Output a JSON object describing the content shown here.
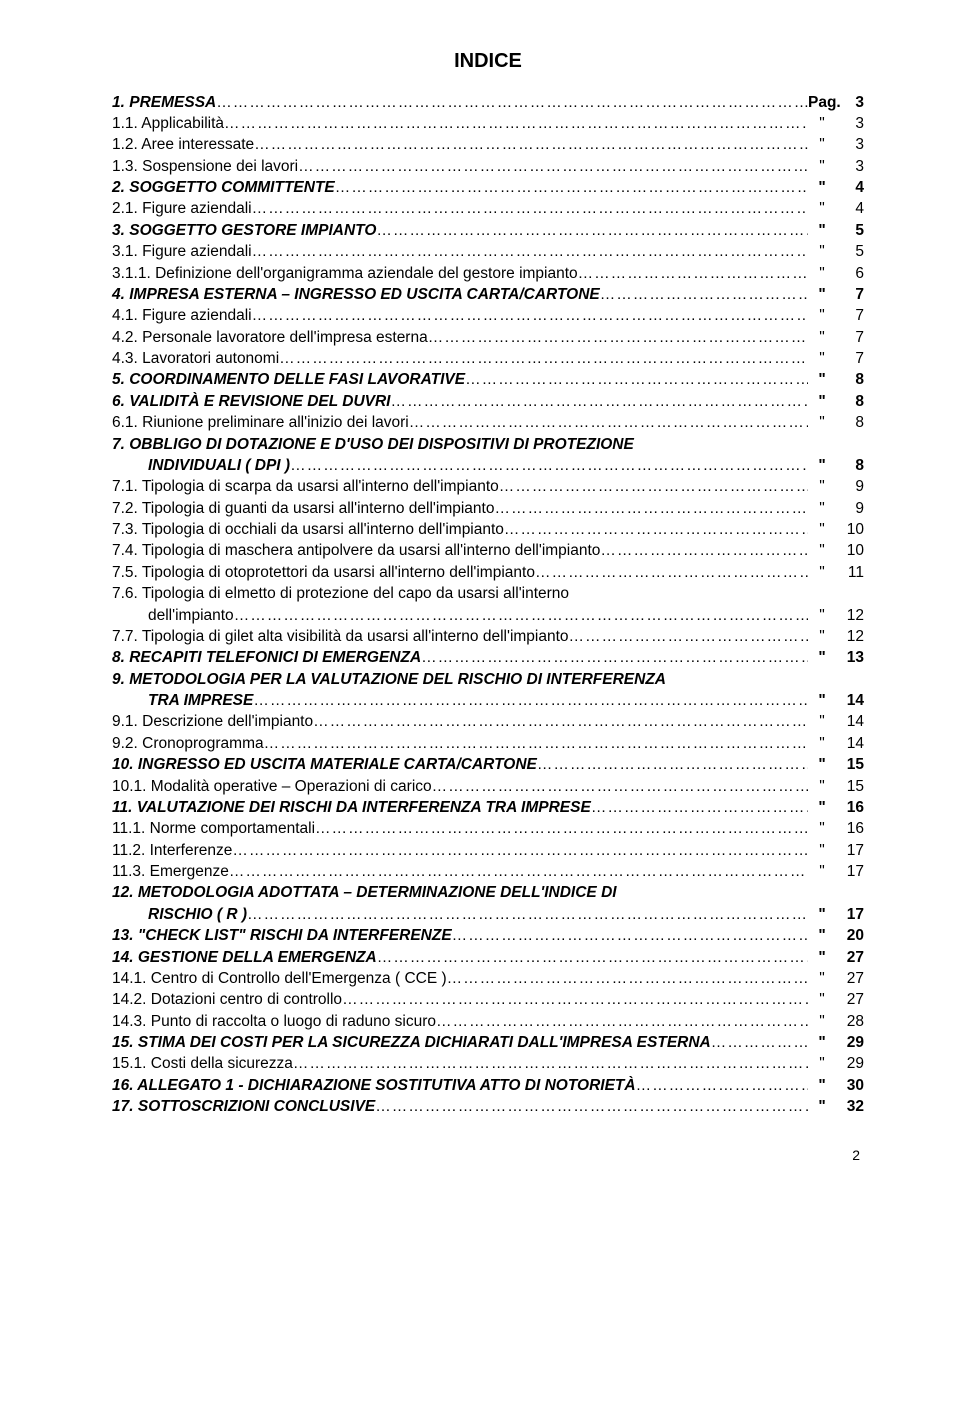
{
  "title": "INDICE",
  "pageNumber": "2",
  "dotFill": "…………………………………………………………………………………………………………………………………………………………………………………………………………………………",
  "rows": [
    {
      "label": "1.   PREMESSA",
      "style": "bi",
      "indent": 1,
      "quote": "Pag.",
      "page": "3"
    },
    {
      "label": "1.1.   Applicabilità",
      "style": "",
      "indent": 1,
      "quote": "\"",
      "page": "3"
    },
    {
      "label": "1.2.   Aree interessate",
      "style": "",
      "indent": 1,
      "quote": "\"",
      "page": "3"
    },
    {
      "label": "1.3.   Sospensione dei lavori",
      "style": "",
      "indent": 1,
      "quote": "\"",
      "page": "3"
    },
    {
      "label": "2.   SOGGETTO COMMITTENTE",
      "style": "bi",
      "indent": 1,
      "quote": "\"",
      "page": "4"
    },
    {
      "label": "2.1.   Figure aziendali",
      "style": "",
      "indent": 1,
      "quote": "\"",
      "page": "4"
    },
    {
      "label": "3.   SOGGETTO GESTORE IMPIANTO",
      "style": "bi",
      "indent": 1,
      "quote": "\"",
      "page": "5"
    },
    {
      "label": "3.1.   Figure aziendali",
      "style": "",
      "indent": 1,
      "quote": "\"",
      "page": "5"
    },
    {
      "label": "3.1.1. Definizione dell'organigramma aziendale del gestore impianto",
      "style": "",
      "indent": 1,
      "quote": "\"",
      "page": "6"
    },
    {
      "label": "4.   IMPRESA ESTERNA – INGRESSO ED USCITA CARTA/CARTONE",
      "style": "bi",
      "indent": 1,
      "quote": "\"",
      "page": "7"
    },
    {
      "label": "4.1.   Figure aziendali",
      "style": "",
      "indent": 1,
      "quote": "\"",
      "page": "7"
    },
    {
      "label": "4.2.   Personale lavoratore dell'impresa esterna",
      "style": "",
      "indent": 1,
      "quote": "\"",
      "page": "7"
    },
    {
      "label": "4.3.   Lavoratori autonomi",
      "style": "",
      "indent": 1,
      "quote": "\"",
      "page": "7"
    },
    {
      "label": "5.   COORDINAMENTO DELLE FASI LAVORATIVE",
      "style": "bi",
      "indent": 1,
      "quote": "\"",
      "page": "8"
    },
    {
      "label": "6.   VALIDITÀ E REVISIONE DEL DUVRI",
      "style": "bi",
      "indent": 1,
      "quote": "\"",
      "page": "8"
    },
    {
      "label": "6.1.   Riunione preliminare all'inizio dei lavori",
      "style": "",
      "indent": 1,
      "quote": "\"",
      "page": "8"
    },
    {
      "label": "7.   OBBLIGO DI DOTAZIONE E D'USO DEI DISPOSITIVI DI PROTEZIONE",
      "style": "bi",
      "indent": 1,
      "quote": "",
      "page": "",
      "nodots": true
    },
    {
      "label": "INDIVIDUALI ( DPI )",
      "style": "bi",
      "indent": 2,
      "quote": "\"",
      "page": "8"
    },
    {
      "label": "7.1.   Tipologia di scarpa da usarsi all'interno dell'impianto",
      "style": "",
      "indent": 1,
      "quote": "\"",
      "page": "9"
    },
    {
      "label": "7.2.   Tipologia di guanti da usarsi all'interno dell'impianto",
      "style": "",
      "indent": 1,
      "quote": "\"",
      "page": "9"
    },
    {
      "label": "7.3.   Tipologia di occhiali da usarsi all'interno dell'impianto",
      "style": "",
      "indent": 1,
      "quote": "\"",
      "page": "10"
    },
    {
      "label": "7.4.   Tipologia di maschera antipolvere da usarsi all'interno dell'impianto",
      "style": "",
      "indent": 1,
      "quote": "\"",
      "page": "10"
    },
    {
      "label": "7.5.   Tipologia di otoprotettori da usarsi all'interno dell'impianto",
      "style": "",
      "indent": 1,
      "quote": "\"",
      "page": "11"
    },
    {
      "label": "7.6.   Tipologia di elmetto di protezione del capo da usarsi all'interno",
      "style": "",
      "indent": 1,
      "quote": "",
      "page": "",
      "nodots": true
    },
    {
      "label": "dell'impianto",
      "style": "",
      "indent": 2,
      "quote": "\"",
      "page": "12"
    },
    {
      "label": "7.7.   Tipologia di gilet alta visibilità da usarsi all'interno dell'impianto",
      "style": "",
      "indent": 1,
      "quote": "\"",
      "page": "12"
    },
    {
      "label": "8.   RECAPITI TELEFONICI DI EMERGENZA",
      "style": "bi",
      "indent": 1,
      "quote": "\"",
      "page": "13"
    },
    {
      "label": "9.   METODOLOGIA PER LA VALUTAZIONE DEL RISCHIO DI INTERFERENZA",
      "style": "bi",
      "indent": 1,
      "quote": "",
      "page": "",
      "nodots": true
    },
    {
      "label": "TRA IMPRESE",
      "style": "bi",
      "indent": 2,
      "quote": "\"",
      "page": "14"
    },
    {
      "label": "9.1.   Descrizione dell'impianto",
      "style": "",
      "indent": 1,
      "quote": "\"",
      "page": "14"
    },
    {
      "label": "9.2.   Cronoprogramma",
      "style": "",
      "indent": 1,
      "quote": "\"",
      "page": "14"
    },
    {
      "label": "10.  INGRESSO ED USCITA MATERIALE CARTA/CARTONE",
      "style": "bi",
      "indent": 1,
      "quote": "\"",
      "page": "15"
    },
    {
      "label": "10.1.  Modalità operative – Operazioni di carico",
      "style": "",
      "indent": 1,
      "quote": "\"",
      "page": "15"
    },
    {
      "label": "11.  VALUTAZIONE DEI RISCHI DA INTERFERENZA TRA IMPRESE",
      "style": "bi",
      "indent": 1,
      "quote": "\"",
      "page": "16"
    },
    {
      "label": "11.1.  Norme comportamentali",
      "style": "",
      "indent": 1,
      "quote": "\"",
      "page": "16"
    },
    {
      "label": "11.2.  Interferenze",
      "style": "",
      "indent": 1,
      "quote": "\"",
      "page": "17"
    },
    {
      "label": "11.3.  Emergenze",
      "style": "",
      "indent": 1,
      "quote": "\"",
      "page": "17"
    },
    {
      "label": "12.  METODOLOGIA ADOTTATA – DETERMINAZIONE DELL'INDICE DI",
      "style": "bi",
      "indent": 1,
      "quote": "",
      "page": "",
      "nodots": true
    },
    {
      "label": "RISCHIO ( R )",
      "style": "bi",
      "indent": 2,
      "quote": "\"",
      "page": "17"
    },
    {
      "label": "13.  \"CHECK LIST\" RISCHI DA INTERFERENZE",
      "style": "bi",
      "indent": 1,
      "quote": "\"",
      "page": "20"
    },
    {
      "label": "14.  GESTIONE DELLA EMERGENZA",
      "style": "bi",
      "indent": 1,
      "quote": "\"",
      "page": "27"
    },
    {
      "label": "14.1.  Centro di Controllo dell'Emergenza ( CCE )",
      "style": "",
      "indent": 1,
      "quote": "\"",
      "page": "27"
    },
    {
      "label": "14.2.  Dotazioni centro di controllo",
      "style": "",
      "indent": 1,
      "quote": "\"",
      "page": "27"
    },
    {
      "label": "14.3.  Punto di raccolta o luogo di raduno sicuro",
      "style": "",
      "indent": 1,
      "quote": "\"",
      "page": "28"
    },
    {
      "label": "15.  STIMA DEI COSTI PER LA SICUREZZA DICHIARATI DALL'IMPRESA ESTERNA",
      "style": "bi",
      "indent": 1,
      "quote": "\"",
      "page": "29"
    },
    {
      "label": "15.1.  Costi della sicurezza",
      "style": "",
      "indent": 1,
      "quote": "\"",
      "page": "29"
    },
    {
      "label": "16.  ALLEGATO 1 - DICHIARAZIONE SOSTITUTIVA ATTO DI NOTORIETÀ",
      "style": "bi",
      "indent": 1,
      "quote": "\"",
      "page": "30"
    },
    {
      "label": "17.  SOTTOSCRIZIONI CONCLUSIVE",
      "style": "bi",
      "indent": 1,
      "quote": "\"",
      "page": "32"
    }
  ]
}
